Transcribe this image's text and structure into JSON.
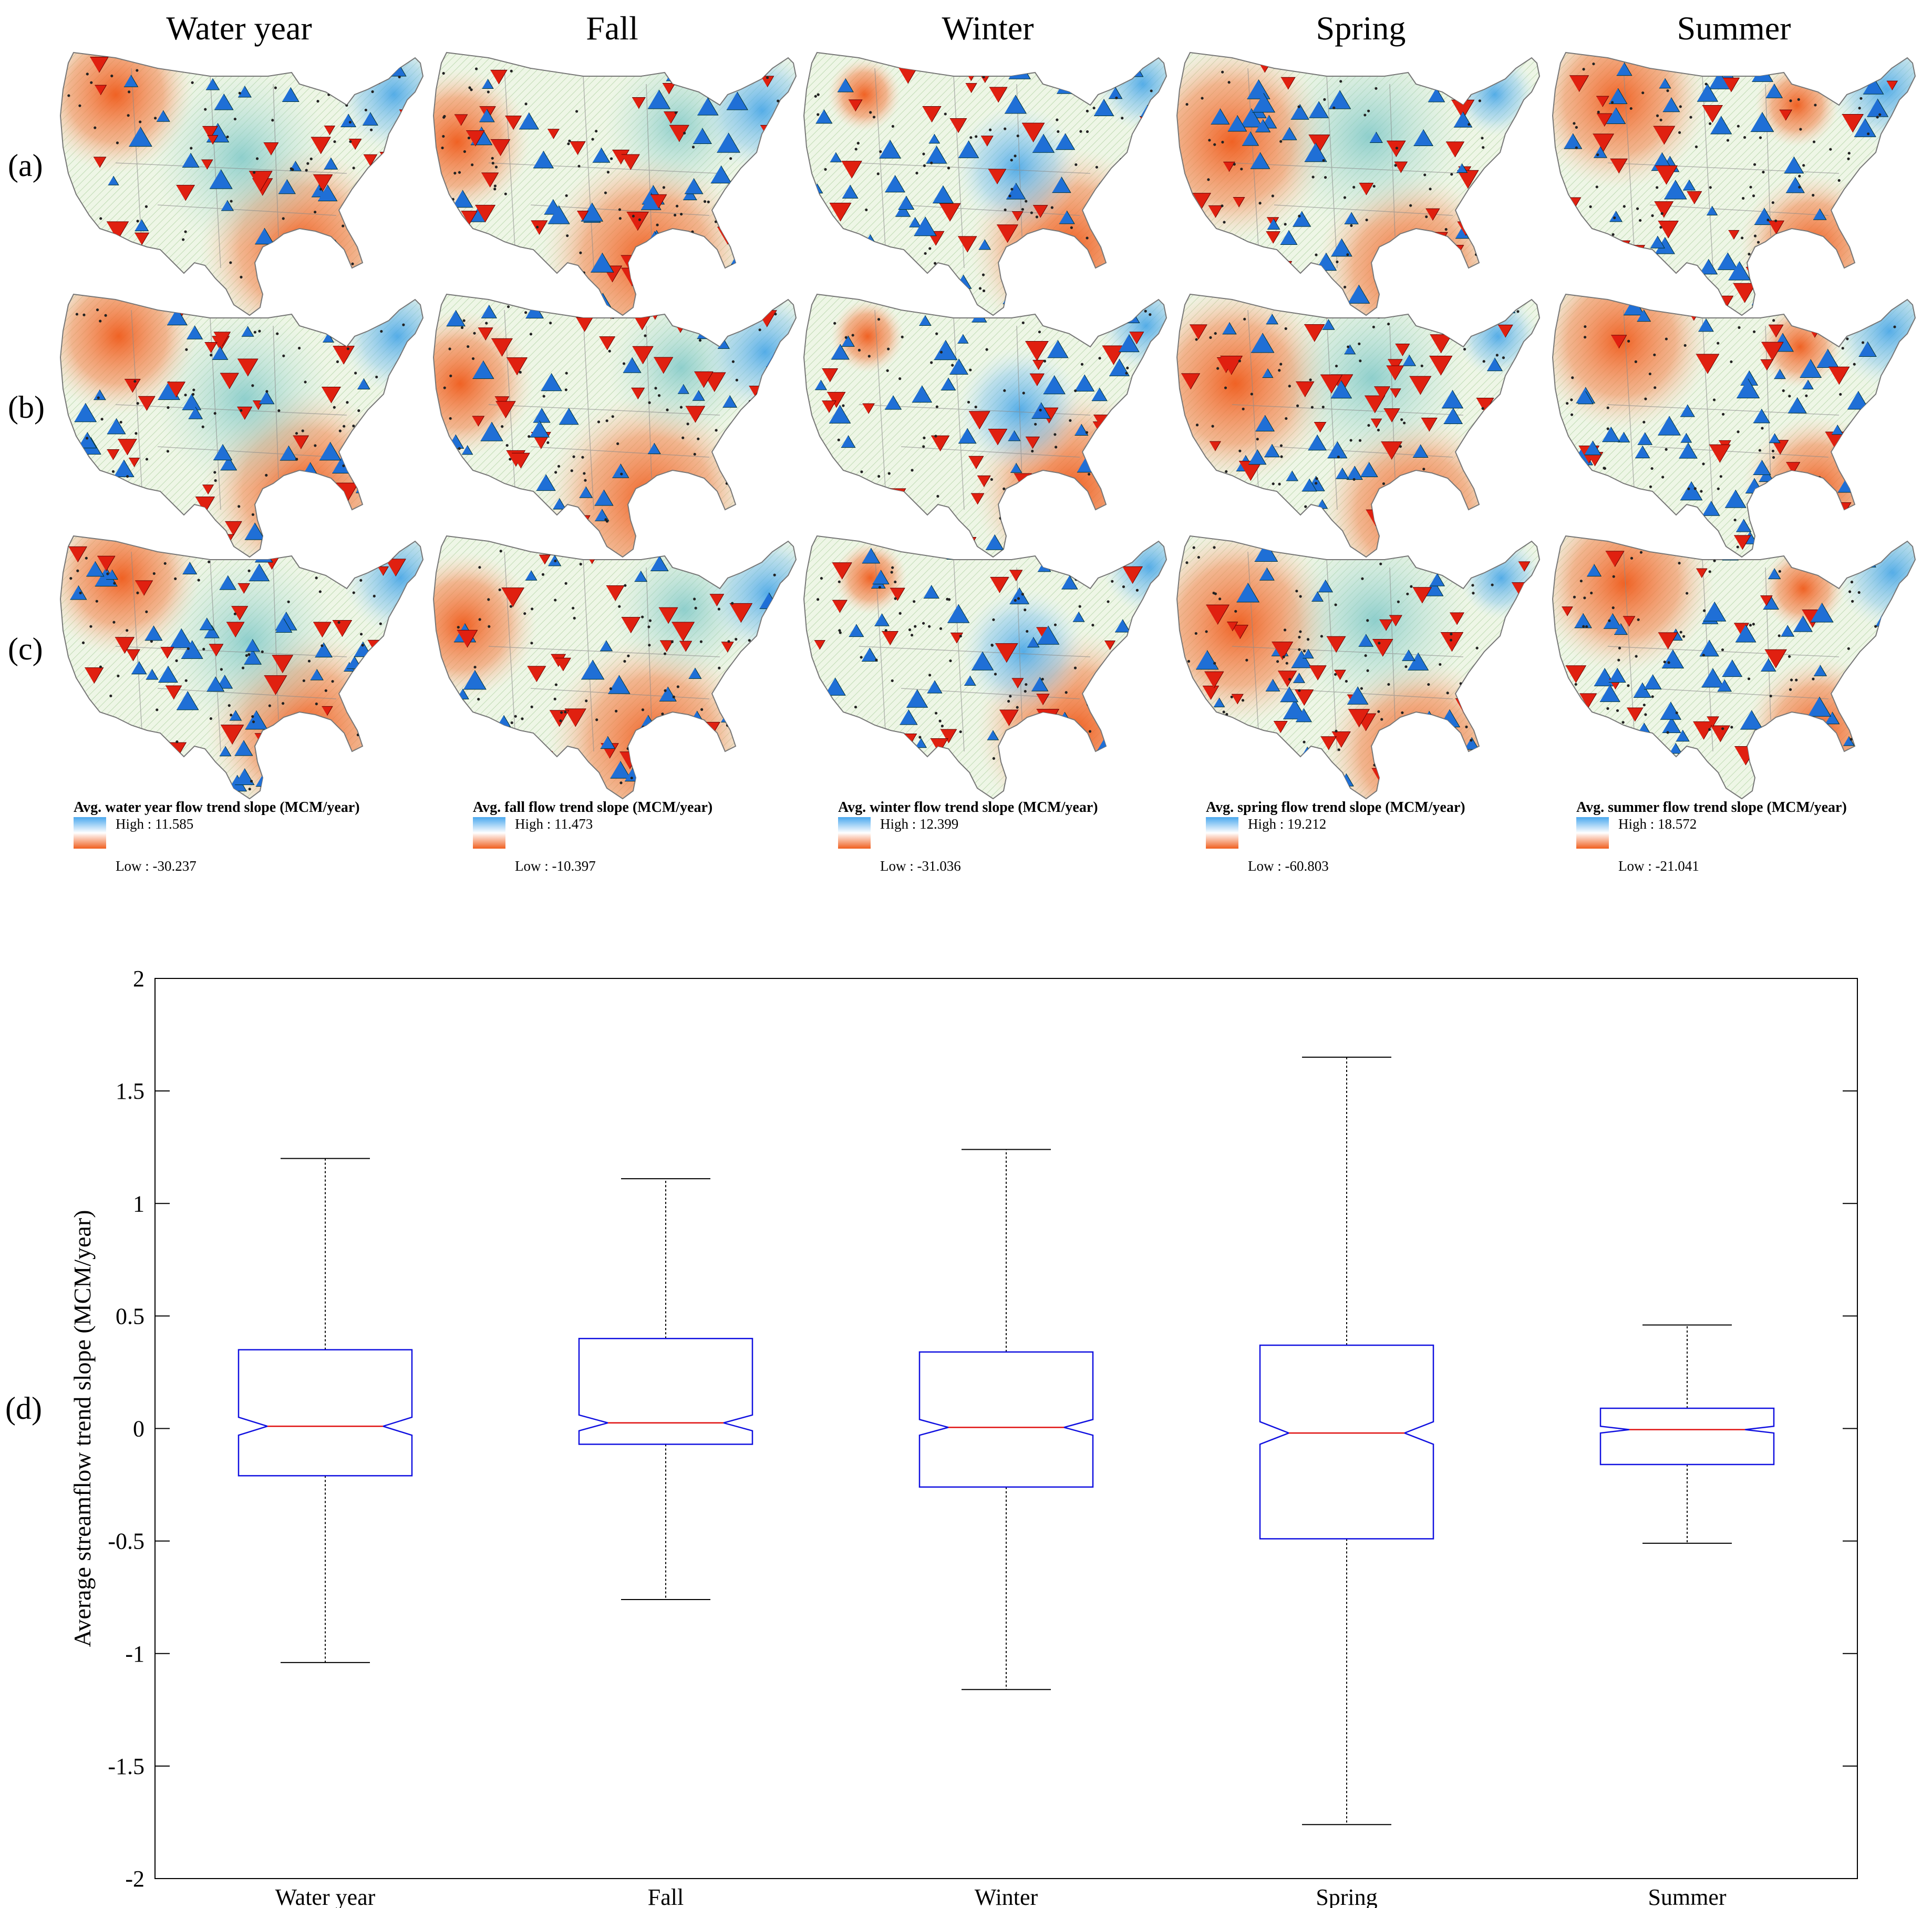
{
  "figure": {
    "column_titles": [
      "Water year",
      "Fall",
      "Winter",
      "Spring",
      "Summer"
    ],
    "row_labels": [
      "(a)",
      "(b)",
      "(c)"
    ],
    "panel_d_label": "(d)",
    "legends": [
      {
        "title": "Avg. water year flow trend slope (MCM/year)",
        "high": "High : 11.585",
        "low": "Low : -30.237"
      },
      {
        "title": "Avg. fall flow trend slope (MCM/year)",
        "high": "High : 11.473",
        "low": "Low : -10.397"
      },
      {
        "title": "Avg. winter flow trend slope (MCM/year)",
        "high": "High : 12.399",
        "low": "Low : -31.036"
      },
      {
        "title": "Avg. spring flow trend slope (MCM/year)",
        "high": "High : 19.212",
        "low": "Low : -60.803"
      },
      {
        "title": "Avg. summer flow trend slope (MCM/year)",
        "high": "High : 18.572",
        "low": "Low : -21.041"
      }
    ]
  },
  "colors": {
    "increase": "#1f6fd6",
    "decrease": "#e02010",
    "high": "#4aa8ee",
    "low": "#f06020",
    "box": "#1010e0",
    "median": "#e01010"
  },
  "chart_data": {
    "type": "boxplot",
    "title": "",
    "xlabel": "",
    "ylabel": "Average streamflow trend slope (MCM/year)",
    "ylim": [
      -2,
      2
    ],
    "yticks": [
      -2,
      -1.5,
      -1,
      -0.5,
      0,
      0.5,
      1,
      1.5,
      2
    ],
    "ytick_labels": [
      "-2",
      "-1.5",
      "-1",
      "-0.5",
      "0",
      "0.5",
      "1",
      "1.5",
      "2"
    ],
    "categories": [
      "Water year",
      "Fall",
      "Winter",
      "Spring",
      "Summer"
    ],
    "boxes": [
      {
        "name": "Water year",
        "whisker_low": -1.04,
        "q1": -0.21,
        "median": 0.01,
        "q3": 0.35,
        "whisker_high": 1.2,
        "notch_low": -0.03,
        "notch_high": 0.05
      },
      {
        "name": "Fall",
        "whisker_low": -0.76,
        "q1": -0.07,
        "median": 0.025,
        "q3": 0.4,
        "whisker_high": 1.11,
        "notch_low": -0.01,
        "notch_high": 0.06
      },
      {
        "name": "Winter",
        "whisker_low": -1.16,
        "q1": -0.26,
        "median": 0.005,
        "q3": 0.34,
        "whisker_high": 1.24,
        "notch_low": -0.03,
        "notch_high": 0.04
      },
      {
        "name": "Spring",
        "whisker_low": -1.76,
        "q1": -0.49,
        "median": -0.02,
        "q3": 0.37,
        "whisker_high": 1.65,
        "notch_low": -0.07,
        "notch_high": 0.03
      },
      {
        "name": "Summer",
        "whisker_low": -0.51,
        "q1": -0.16,
        "median": -0.005,
        "q3": 0.09,
        "whisker_high": 0.46,
        "notch_low": -0.02,
        "notch_high": 0.01
      }
    ]
  }
}
